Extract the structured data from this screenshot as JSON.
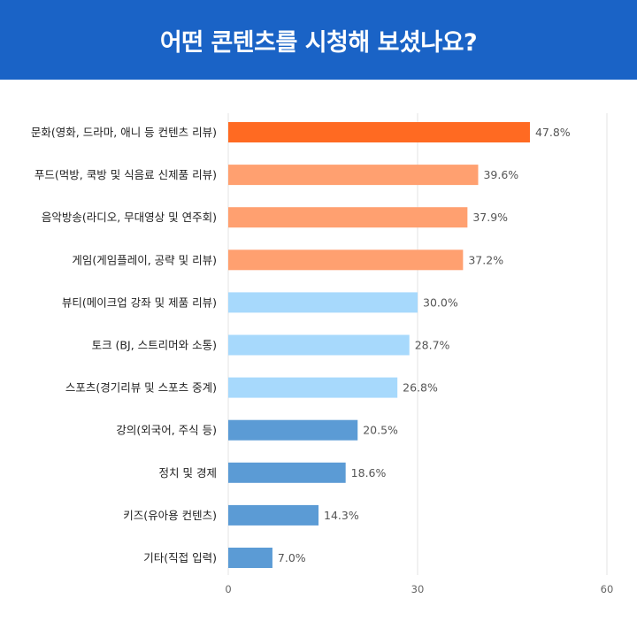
{
  "header": {
    "title": "어떤 콘텐츠를 시청해 보셨나요?"
  },
  "chart_data": {
    "type": "bar",
    "orientation": "horizontal",
    "categories": [
      "문화(영화, 드라마, 애니 등 컨텐츠 리뷰)",
      "푸드(먹방, 쿡방 및 식음료 신제품 리뷰)",
      "음악방송(라디오, 무대영상 및 연주회)",
      "게임(게임플레이, 공략 및 리뷰)",
      "뷰티(메이크업 강좌 및 제품 리뷰)",
      "토크 (BJ, 스트리머와 소통)",
      "스포츠(경기리뷰 및 스포츠 중계)",
      "강의(외국어, 주식 등)",
      "정치 및 경제",
      "키즈(유아용 컨텐츠)",
      "기타(직접 입력)"
    ],
    "values": [
      47.8,
      39.6,
      37.9,
      37.2,
      30.0,
      28.7,
      26.8,
      20.5,
      18.6,
      14.3,
      7.0
    ],
    "value_labels": [
      "47.8%",
      "39.6%",
      "37.9%",
      "37.2%",
      "30.0%",
      "28.7%",
      "26.8%",
      "20.5%",
      "18.6%",
      "14.3%",
      "7.0%"
    ],
    "bar_colors": [
      "#ff6a22",
      "#ffa070",
      "#ffa070",
      "#ffa070",
      "#a7d9fc",
      "#a7d9fc",
      "#a7d9fc",
      "#5b9bd5",
      "#5b9bd5",
      "#5b9bd5",
      "#5b9bd5"
    ],
    "xlim": [
      0,
      60
    ],
    "x_ticks": [
      0,
      30,
      60
    ],
    "grid": true
  }
}
